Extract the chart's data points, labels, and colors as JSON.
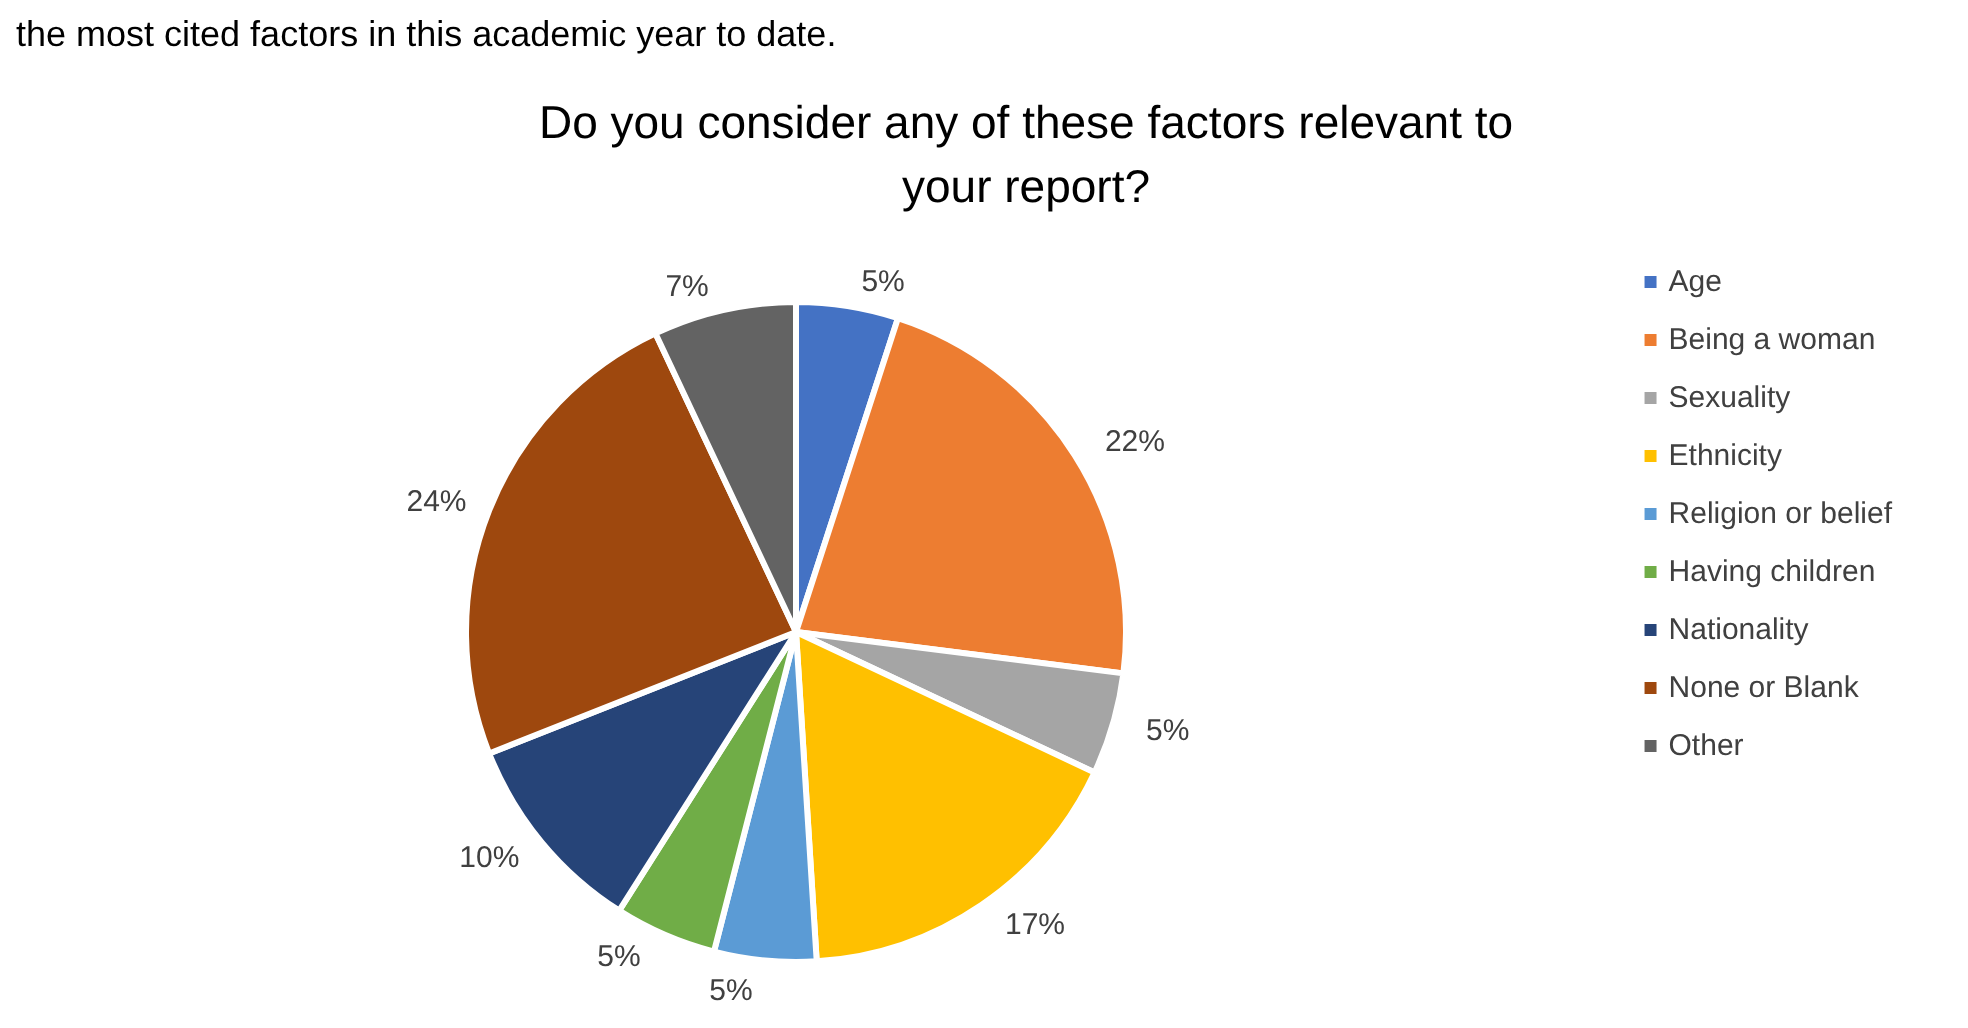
{
  "chart_data": {
    "type": "pie",
    "title": "Do you consider any of these factors relevant to\nyour report?",
    "categories": [
      "Age",
      "Being a woman",
      "Sexuality",
      "Ethnicity",
      "Religion or belief",
      "Having children",
      "Nationality",
      "None or Blank",
      "Other"
    ],
    "values": [
      5,
      22,
      5,
      17,
      5,
      5,
      10,
      24,
      7
    ],
    "colors": [
      "#4472c4",
      "#ed7d31",
      "#a5a5a5",
      "#ffc000",
      "#5b9bd5",
      "#70ad47",
      "#264478",
      "#9e480e",
      "#636363"
    ],
    "value_labels": [
      "5%",
      "22%",
      "5%",
      "17%",
      "5%",
      "5%",
      "10%",
      "24%",
      "7%"
    ],
    "legend": "right",
    "annotations": [
      "the most cited factors in this academic year to date."
    ]
  }
}
